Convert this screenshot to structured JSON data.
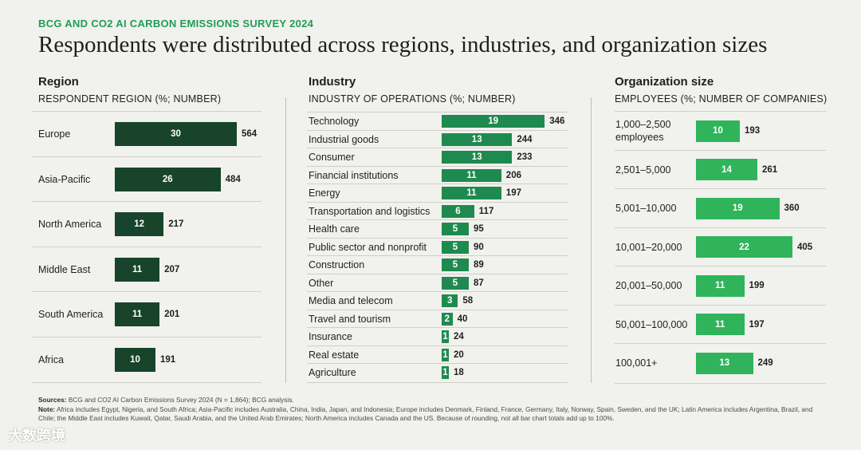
{
  "header": {
    "kicker": "BCG AND CO2 AI CARBON EMISSIONS SURVEY 2024",
    "title": "Respondents were distributed across regions, industries, and organization sizes"
  },
  "colors": {
    "region": "#17442a",
    "industry": "#1f8a4f",
    "org": "#2fb45c",
    "kicker": "#1f9e55"
  },
  "chart_data": [
    {
      "type": "bar",
      "orientation": "horizontal",
      "title": "Region",
      "subtitle": "RESPONDENT REGION (%; NUMBER)",
      "categories": [
        "Europe",
        "Asia-Pacific",
        "North America",
        "Middle East",
        "South America",
        "Africa"
      ],
      "series": [
        {
          "values": [
            30,
            26,
            12,
            11,
            11,
            10
          ]
        },
        {
          "values": [
            564,
            484,
            217,
            207,
            201,
            191
          ]
        }
      ]
    },
    {
      "type": "bar",
      "orientation": "horizontal",
      "title": "Industry",
      "subtitle": "INDUSTRY OF OPERATIONS (%; NUMBER)",
      "categories": [
        "Technology",
        "Industrial goods",
        "Consumer",
        "Financial institutions",
        "Energy",
        "Transportation and logistics",
        "Health care",
        "Public sector and nonprofit",
        "Construction",
        "Other",
        "Media and telecom",
        "Travel and tourism",
        "Insurance",
        "Real estate",
        "Agriculture"
      ],
      "series": [
        {
          "values": [
            19,
            13,
            13,
            11,
            11,
            6,
            5,
            5,
            5,
            5,
            3,
            2,
            1,
            1,
            1
          ]
        },
        {
          "values": [
            346,
            244,
            233,
            206,
            197,
            117,
            95,
            90,
            89,
            87,
            58,
            40,
            24,
            20,
            18
          ]
        }
      ]
    },
    {
      "type": "bar",
      "orientation": "horizontal",
      "title": "Organization size",
      "subtitle": "EMPLOYEES (%; NUMBER OF COMPANIES)",
      "categories": [
        "1,000–2,500 employees",
        "2,501–5,000",
        "5,001–10,000",
        "10,001–20,000",
        "20,001–50,000",
        "50,001–100,000",
        "100,001+"
      ],
      "series": [
        {
          "values": [
            10,
            14,
            19,
            22,
            11,
            11,
            13
          ]
        },
        {
          "values": [
            193,
            261,
            360,
            405,
            199,
            197,
            249
          ]
        }
      ]
    }
  ],
  "footer": {
    "sources_label": "Sources:",
    "sources_text": " BCG and CO2 AI Carbon Emissions Survey 2024 (N = 1,864); BCG analysis.",
    "note_label": "Note:",
    "note_text": " Africa includes Egypt, Nigeria, and South Africa; Asia-Pacific includes Australia, China, India, Japan, and Indonesia; Europe includes Denmark, Finland, France, Germany, Italy, Norway, Spain, Sweden, and the UK; Latin America includes Argentina, Brazil, and Chile; the Middle East includes Kuwait, Qatar, Saudi Arabia, and the United Arab Emirates; North America includes Canada and the US. Because of rounding, not all bar chart totals add up to 100%."
  },
  "watermark": "大数跨境"
}
